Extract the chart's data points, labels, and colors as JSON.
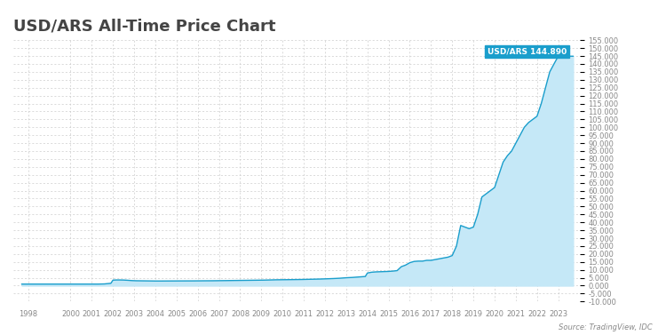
{
  "title": "USD/ARS All-Time Price Chart",
  "source_text": "Source: TradingView, IDC",
  "label_text": "USD/ARS 144.890",
  "label_color": "#1a9ecc",
  "line_color": "#1a9ecc",
  "fill_color": "#c5e8f7",
  "background_color": "#ffffff",
  "grid_color": "#cccccc",
  "title_fontsize": 13,
  "tick_fontsize": 6.0,
  "ylim": [
    -10000,
    155000
  ],
  "ytick_step": 5000,
  "xlim_min": 1997.3,
  "xlim_max": 2024.0,
  "xtick_positions": [
    1998,
    2000,
    2001,
    2002,
    2003,
    2004,
    2005,
    2006,
    2007,
    2008,
    2009,
    2010,
    2011,
    2012,
    2013,
    2014,
    2015,
    2016,
    2017,
    2018,
    2019,
    2020,
    2021,
    2022,
    2023
  ],
  "data_years": [
    1997.7,
    1998.0,
    1998.3,
    1998.6,
    1998.9,
    1999.2,
    1999.5,
    1999.8,
    2000.1,
    2000.4,
    2000.7,
    2001.0,
    2001.3,
    2001.6,
    2001.9,
    2002.0,
    2002.15,
    2002.3,
    2002.5,
    2002.7,
    2002.9,
    2003.1,
    2003.4,
    2003.7,
    2004.0,
    2004.3,
    2004.6,
    2004.9,
    2005.2,
    2005.5,
    2005.8,
    2006.1,
    2006.4,
    2006.7,
    2007.0,
    2007.3,
    2007.6,
    2007.9,
    2008.2,
    2008.5,
    2008.8,
    2009.1,
    2009.4,
    2009.7,
    2010.0,
    2010.3,
    2010.6,
    2010.9,
    2011.2,
    2011.5,
    2011.8,
    2012.1,
    2012.4,
    2012.7,
    2013.0,
    2013.3,
    2013.6,
    2013.9,
    2014.0,
    2014.2,
    2014.4,
    2014.6,
    2014.8,
    2015.0,
    2015.2,
    2015.4,
    2015.6,
    2015.8,
    2016.0,
    2016.2,
    2016.4,
    2016.6,
    2016.8,
    2017.0,
    2017.2,
    2017.4,
    2017.6,
    2017.8,
    2018.0,
    2018.2,
    2018.4,
    2018.6,
    2018.8,
    2019.0,
    2019.2,
    2019.4,
    2019.6,
    2019.8,
    2020.0,
    2020.2,
    2020.4,
    2020.6,
    2020.8,
    2021.0,
    2021.2,
    2021.4,
    2021.6,
    2021.8,
    2022.0,
    2022.2,
    2022.4,
    2022.6,
    2022.8,
    2023.0,
    2023.2,
    2023.4,
    2023.6,
    2023.7
  ],
  "data_values": [
    1000,
    1000,
    1000,
    1000,
    1000,
    1000,
    1000,
    1000,
    1000,
    1000,
    1000,
    1000,
    1000,
    1100,
    1500,
    3500,
    3600,
    3600,
    3550,
    3400,
    3200,
    3100,
    3050,
    3000,
    2950,
    2950,
    2970,
    2980,
    3000,
    3010,
    3020,
    3050,
    3080,
    3100,
    3150,
    3200,
    3250,
    3300,
    3350,
    3400,
    3450,
    3500,
    3600,
    3700,
    3750,
    3800,
    3850,
    3900,
    4000,
    4100,
    4200,
    4350,
    4500,
    4700,
    5000,
    5200,
    5500,
    5800,
    8000,
    8500,
    8700,
    8800,
    8900,
    9000,
    9200,
    9500,
    12000,
    13000,
    14500,
    15300,
    15500,
    15500,
    16000,
    16000,
    16500,
    17000,
    17500,
    18000,
    19000,
    25000,
    38000,
    37000,
    36000,
    37000,
    45000,
    56000,
    58000,
    60000,
    62000,
    70000,
    78000,
    82000,
    85000,
    90000,
    95000,
    100000,
    103000,
    105000,
    107000,
    115000,
    125000,
    135000,
    140000,
    144890,
    144890,
    144890,
    144890,
    144890
  ]
}
